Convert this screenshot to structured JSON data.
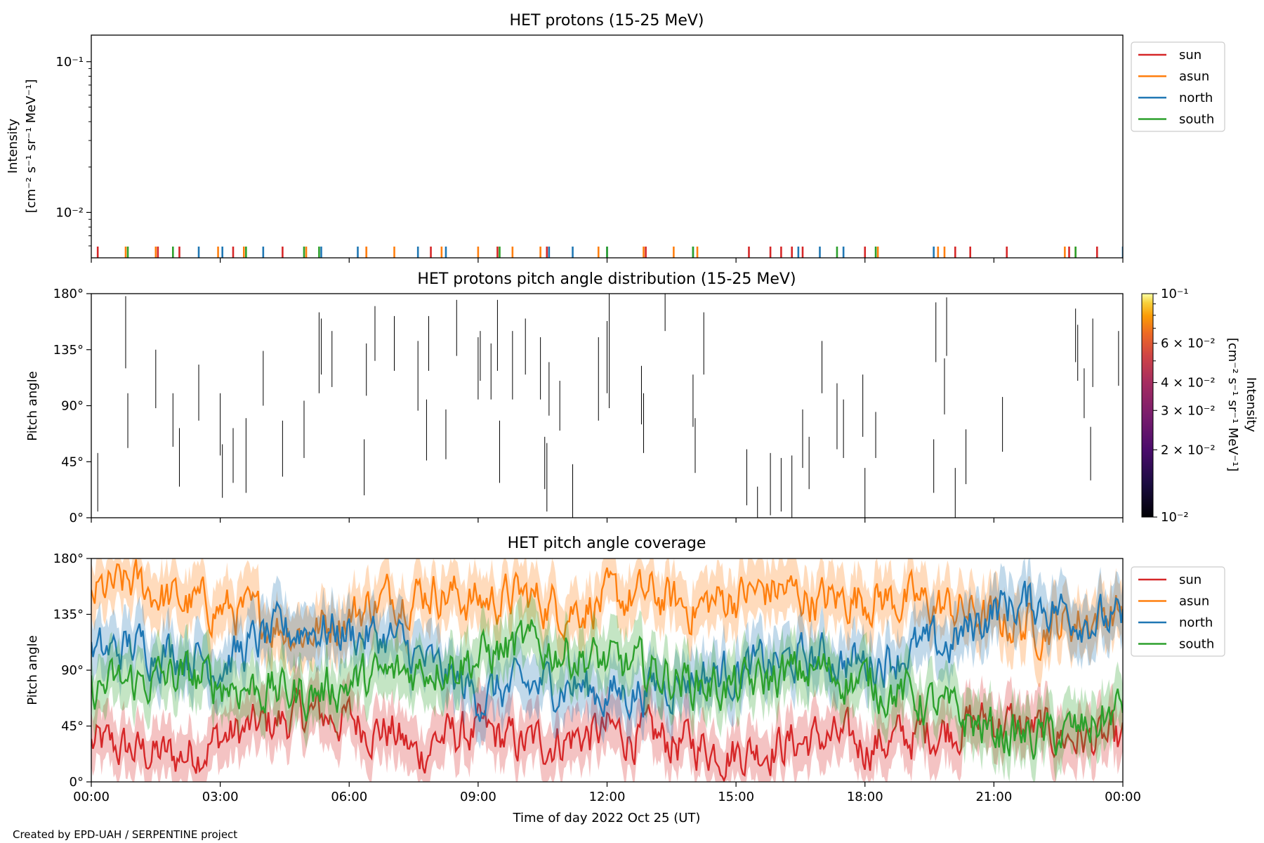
{
  "figure": {
    "credit": "Created by EPD-UAH / SERPENTINE project",
    "xlabel": "Time of day 2022 Oct 25 (UT)",
    "xtick_labels": [
      "00:00",
      "03:00",
      "06:00",
      "09:00",
      "12:00",
      "15:00",
      "18:00",
      "21:00",
      "00:00"
    ]
  },
  "colors": {
    "sun": "#d62728",
    "asun": "#ff7f0e",
    "north": "#1f77b4",
    "south": "#2ca02c"
  },
  "legend": [
    {
      "key": "sun",
      "label": "sun"
    },
    {
      "key": "asun",
      "label": "asun"
    },
    {
      "key": "north",
      "label": "north"
    },
    {
      "key": "south",
      "label": "south"
    }
  ],
  "chart_data": [
    {
      "type": "line",
      "title": "HET protons (15-25 MeV)",
      "ylabel_line1": "Intensity",
      "ylabel_line2": "[cm⁻² s⁻¹ sr⁻¹ MeV⁻¹]",
      "yscale": "log",
      "ylim": [
        0.005,
        0.15
      ],
      "ytick_labels": [
        "10⁻¹",
        "10⁻²"
      ],
      "ytick_values": [
        0.1,
        0.01
      ],
      "xlim_hours": [
        0,
        24
      ],
      "legend_position": "outside-right",
      "series": [
        {
          "key": "sun",
          "name": "sun",
          "spike_hours": [
            0.15,
            1.55,
            2.05,
            3.3,
            4.45,
            6.4,
            7.9,
            9.45,
            10.6,
            12.9,
            15.3,
            15.8,
            16.05,
            16.3,
            16.55,
            18.0,
            20.1,
            20.45,
            21.3,
            22.75,
            23.4
          ]
        },
        {
          "key": "asun",
          "name": "asun",
          "spike_hours": [
            0.8,
            1.5,
            2.95,
            3.55,
            5.0,
            6.4,
            7.05,
            8.15,
            9.0,
            9.8,
            10.45,
            11.8,
            12.85,
            13.55,
            14.1,
            18.3,
            19.7,
            19.85,
            22.65,
            22.9
          ]
        },
        {
          "key": "north",
          "name": "north",
          "spike_hours": [
            2.5,
            3.05,
            4.0,
            5.35,
            6.2,
            7.6,
            8.25,
            10.65,
            11.2,
            12.0,
            14.0,
            16.45,
            16.95,
            17.5,
            19.6,
            24.0
          ]
        },
        {
          "key": "south",
          "name": "south",
          "spike_hours": [
            0.85,
            1.9,
            3.6,
            4.95,
            5.3,
            9.5,
            12.0,
            14.0,
            17.35,
            18.25,
            22.9
          ]
        }
      ]
    },
    {
      "type": "heatmap",
      "title": "HET protons pitch angle distribution (15-25 MeV)",
      "ylabel": "Pitch angle",
      "ylim": [
        0,
        180
      ],
      "ytick_labels": [
        "0°",
        "45°",
        "90°",
        "135°",
        "180°"
      ],
      "ytick_values": [
        0,
        45,
        90,
        135,
        180
      ],
      "colorbar_label_line1": "Intensity",
      "colorbar_label_line2": "[cm⁻² s⁻¹ sr⁻¹ MeV⁻¹]",
      "colorbar_scale": "log",
      "colorbar_range": [
        0.01,
        0.1
      ],
      "colorbar_tick_labels": [
        "10⁻¹",
        "6 × 10⁻²",
        "4 × 10⁻²",
        "3 × 10⁻²",
        "2 × 10⁻²",
        "10⁻²"
      ],
      "colorbar_tick_values": [
        0.1,
        0.06,
        0.04,
        0.03,
        0.02,
        0.01
      ],
      "segments": [
        [
          0.15,
          5,
          52
        ],
        [
          0.8,
          120,
          178
        ],
        [
          0.85,
          56,
          100
        ],
        [
          1.5,
          88,
          135
        ],
        [
          1.9,
          57,
          100
        ],
        [
          2.05,
          25,
          72
        ],
        [
          2.5,
          78,
          123
        ],
        [
          3.0,
          50,
          100
        ],
        [
          3.05,
          16,
          59
        ],
        [
          3.3,
          28,
          72
        ],
        [
          3.6,
          20,
          80
        ],
        [
          4.0,
          90,
          134
        ],
        [
          4.45,
          33,
          78
        ],
        [
          4.95,
          48,
          94
        ],
        [
          5.3,
          100,
          165
        ],
        [
          5.35,
          115,
          160
        ],
        [
          5.6,
          105,
          150
        ],
        [
          6.35,
          18,
          63
        ],
        [
          6.4,
          98,
          140
        ],
        [
          6.6,
          126,
          170
        ],
        [
          7.05,
          118,
          162
        ],
        [
          7.6,
          86,
          142
        ],
        [
          7.8,
          46,
          95
        ],
        [
          7.85,
          118,
          162
        ],
        [
          8.25,
          47,
          87
        ],
        [
          8.5,
          130,
          175
        ],
        [
          9.0,
          95,
          145
        ],
        [
          9.05,
          110,
          150
        ],
        [
          9.3,
          95,
          140
        ],
        [
          9.45,
          118,
          175
        ],
        [
          9.5,
          28,
          78
        ],
        [
          9.8,
          95,
          150
        ],
        [
          10.1,
          115,
          160
        ],
        [
          10.45,
          95,
          145
        ],
        [
          10.55,
          23,
          65
        ],
        [
          10.6,
          5,
          60
        ],
        [
          10.65,
          82,
          125
        ],
        [
          10.9,
          70,
          110
        ],
        [
          11.2,
          0,
          43
        ],
        [
          11.8,
          78,
          145
        ],
        [
          12.0,
          100,
          158
        ],
        [
          12.05,
          88,
          180
        ],
        [
          12.8,
          75,
          122
        ],
        [
          12.85,
          52,
          100
        ],
        [
          13.35,
          150,
          180
        ],
        [
          14.0,
          73,
          115
        ],
        [
          14.05,
          36,
          80
        ],
        [
          14.25,
          115,
          165
        ],
        [
          15.25,
          10,
          55
        ],
        [
          15.5,
          0,
          25
        ],
        [
          15.8,
          2,
          52
        ],
        [
          16.05,
          5,
          48
        ],
        [
          16.3,
          0,
          50
        ],
        [
          16.55,
          40,
          87
        ],
        [
          16.7,
          23,
          65
        ],
        [
          17.0,
          100,
          142
        ],
        [
          17.35,
          55,
          108
        ],
        [
          17.5,
          48,
          95
        ],
        [
          17.95,
          65,
          115
        ],
        [
          18.0,
          0,
          40
        ],
        [
          18.25,
          48,
          85
        ],
        [
          19.6,
          20,
          63
        ],
        [
          19.65,
          125,
          173
        ],
        [
          19.85,
          83,
          128
        ],
        [
          19.9,
          130,
          177
        ],
        [
          20.1,
          0,
          40
        ],
        [
          20.35,
          27,
          71
        ],
        [
          21.2,
          53,
          97
        ],
        [
          22.9,
          125,
          168
        ],
        [
          22.95,
          110,
          155
        ],
        [
          23.1,
          80,
          120
        ],
        [
          23.25,
          30,
          73
        ],
        [
          23.3,
          105,
          160
        ],
        [
          23.9,
          106,
          150
        ]
      ]
    },
    {
      "type": "line",
      "title": "HET pitch angle coverage",
      "ylabel": "Pitch angle",
      "ylim": [
        0,
        180
      ],
      "ytick_labels": [
        "0°",
        "45°",
        "90°",
        "135°",
        "180°"
      ],
      "ytick_values": [
        0,
        45,
        90,
        135,
        180
      ],
      "xlim_hours": [
        0,
        24
      ],
      "legend_position": "outside-right",
      "band_width_deg": 22,
      "series": [
        {
          "key": "sun",
          "name": "sun",
          "x_hours": [
            0,
            1,
            2,
            3,
            4,
            5,
            6,
            7,
            7.6,
            8,
            9,
            10,
            11,
            12,
            13,
            14,
            15,
            16,
            17,
            18,
            19,
            20,
            21,
            22,
            23,
            24
          ],
          "values": [
            30,
            25,
            20,
            35,
            45,
            55,
            50,
            40,
            20,
            35,
            40,
            30,
            35,
            40,
            35,
            30,
            25,
            30,
            35,
            30,
            35,
            45,
            50,
            40,
            35,
            30
          ]
        },
        {
          "key": "asun",
          "name": "asun",
          "x_hours": [
            0,
            1,
            2,
            3,
            4,
            5,
            6,
            7,
            8,
            9,
            10,
            11,
            12,
            13,
            14,
            15,
            16,
            17,
            18,
            19,
            20,
            21,
            22,
            23,
            24
          ],
          "values": [
            150,
            160,
            145,
            140,
            130,
            120,
            135,
            150,
            155,
            145,
            150,
            140,
            145,
            150,
            140,
            150,
            155,
            145,
            150,
            145,
            140,
            130,
            125,
            130,
            140
          ]
        },
        {
          "key": "north",
          "name": "north",
          "x_hours": [
            0,
            1,
            2,
            3,
            4,
            5,
            6,
            7,
            8,
            9,
            10,
            11,
            12,
            13,
            14,
            15,
            16,
            17,
            18,
            19,
            20,
            21,
            22,
            23,
            24
          ],
          "values": [
            100,
            110,
            105,
            95,
            115,
            125,
            120,
            115,
            90,
            70,
            75,
            80,
            70,
            75,
            85,
            90,
            95,
            100,
            95,
            105,
            110,
            140,
            145,
            135,
            125
          ]
        },
        {
          "key": "south",
          "name": "south",
          "x_hours": [
            0,
            1,
            2,
            3,
            4,
            5,
            6,
            7,
            8,
            9,
            10,
            11,
            12,
            13,
            14,
            15,
            16,
            17,
            18,
            19,
            20,
            21,
            22,
            23,
            24
          ],
          "values": [
            75,
            80,
            85,
            80,
            75,
            70,
            80,
            85,
            95,
            100,
            110,
            105,
            95,
            90,
            80,
            75,
            85,
            90,
            80,
            70,
            55,
            40,
            35,
            40,
            60
          ]
        }
      ]
    }
  ]
}
